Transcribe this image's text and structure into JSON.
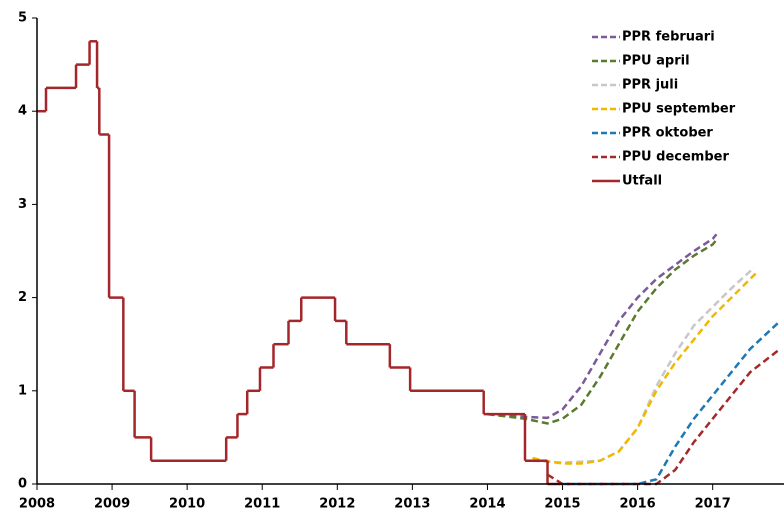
{
  "chart_data": {
    "type": "line",
    "xlim": [
      2008,
      2017.95
    ],
    "xticks": [
      2008,
      2009,
      2010,
      2011,
      2012,
      2013,
      2014,
      2015,
      2016,
      2017
    ],
    "ylim": [
      0,
      5
    ],
    "yticks": [
      0,
      1,
      2,
      3,
      4,
      5
    ],
    "grid": false,
    "legend": "top-right",
    "series": [
      {
        "name": "PPR februari",
        "color": "#7b5a98",
        "dashed": true,
        "x": [
          2014.0,
          2014.5,
          2014.8,
          2015.0,
          2015.25,
          2015.5,
          2015.75,
          2016.0,
          2016.25,
          2016.5,
          2016.75,
          2017.0,
          2017.05
        ],
        "values": [
          0.75,
          0.72,
          0.71,
          0.8,
          1.05,
          1.4,
          1.75,
          2.0,
          2.2,
          2.35,
          2.5,
          2.63,
          2.68
        ]
      },
      {
        "name": "PPU april",
        "color": "#5a7a2e",
        "dashed": true,
        "x": [
          2014.0,
          2014.5,
          2014.8,
          2015.0,
          2015.25,
          2015.5,
          2015.75,
          2016.0,
          2016.25,
          2016.5,
          2016.75,
          2017.0,
          2017.05
        ],
        "values": [
          0.75,
          0.7,
          0.65,
          0.7,
          0.85,
          1.15,
          1.5,
          1.85,
          2.1,
          2.3,
          2.45,
          2.57,
          2.62
        ]
      },
      {
        "name": "PPR juli",
        "color": "#c8c8c8",
        "dashed": true,
        "x": [
          2014.6,
          2015.0,
          2015.5,
          2015.75,
          2016.0,
          2016.25,
          2016.5,
          2016.75,
          2017.0,
          2017.25,
          2017.55
        ],
        "values": [
          0.25,
          0.23,
          0.25,
          0.35,
          0.6,
          1.05,
          1.4,
          1.7,
          1.9,
          2.1,
          2.32
        ]
      },
      {
        "name": "PPU september",
        "color": "#f2b800",
        "dashed": true,
        "x": [
          2014.6,
          2014.75,
          2015.0,
          2015.25,
          2015.5,
          2015.75,
          2016.0,
          2016.25,
          2016.5,
          2016.75,
          2017.0,
          2017.25,
          2017.6
        ],
        "values": [
          0.28,
          0.25,
          0.22,
          0.22,
          0.25,
          0.35,
          0.6,
          1.0,
          1.3,
          1.55,
          1.8,
          2.0,
          2.28
        ]
      },
      {
        "name": "PPR oktober",
        "color": "#1f78b4",
        "dashed": true,
        "x": [
          2015.0,
          2016.0,
          2016.25,
          2016.5,
          2016.75,
          2017.0,
          2017.25,
          2017.5,
          2017.9
        ],
        "values": [
          0.0,
          0.0,
          0.05,
          0.4,
          0.7,
          0.95,
          1.2,
          1.45,
          1.75
        ]
      },
      {
        "name": "PPU december",
        "color": "#a32a2a",
        "dashed": true,
        "x": [
          2014.8,
          2015.0,
          2016.25,
          2016.5,
          2016.75,
          2017.0,
          2017.25,
          2017.5,
          2017.9
        ],
        "values": [
          0.1,
          0.0,
          0.0,
          0.15,
          0.45,
          0.7,
          0.95,
          1.2,
          1.45
        ]
      },
      {
        "name": "Utfall",
        "color": "#a3262a",
        "dashed": false,
        "step": true,
        "x": [
          2008.0,
          2008.12,
          2008.52,
          2008.7,
          2008.8,
          2008.83,
          2008.96,
          2009.15,
          2009.3,
          2009.52,
          2010.52,
          2010.67,
          2010.8,
          2010.97,
          2011.15,
          2011.35,
          2011.52,
          2011.97,
          2012.12,
          2012.7,
          2012.97,
          2013.95,
          2014.5,
          2014.8,
          2015.0
        ],
        "values": [
          4.0,
          4.25,
          4.5,
          4.75,
          4.25,
          3.75,
          2.0,
          1.0,
          0.5,
          0.25,
          0.5,
          0.75,
          1.0,
          1.25,
          1.5,
          1.75,
          2.0,
          1.75,
          1.5,
          1.25,
          1.0,
          0.75,
          0.25,
          0.0,
          0.0
        ]
      }
    ]
  }
}
